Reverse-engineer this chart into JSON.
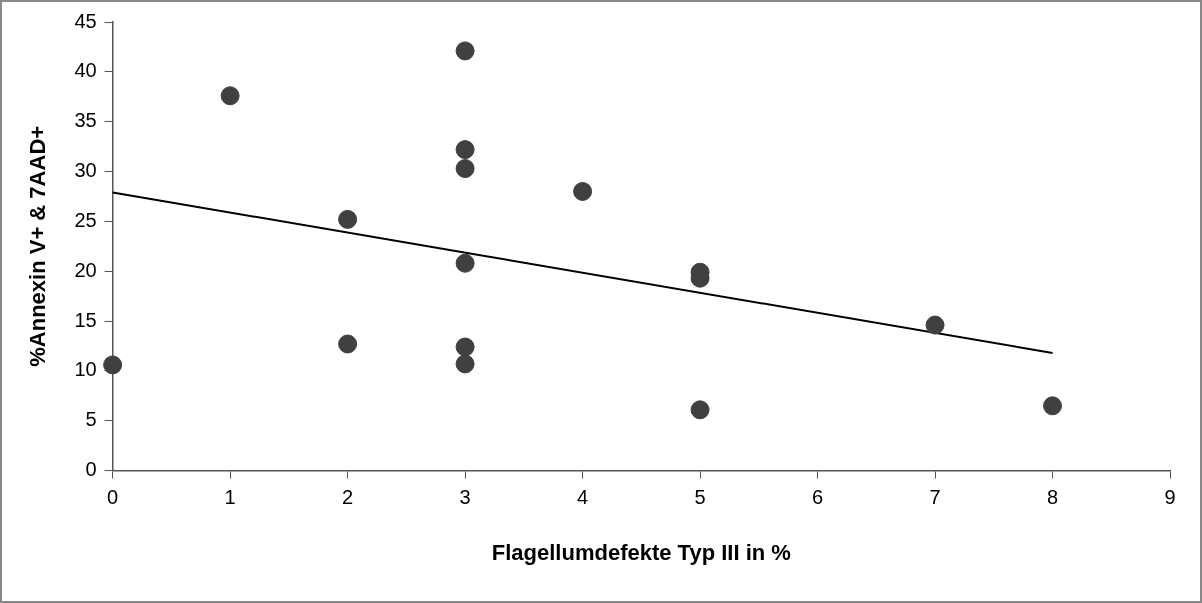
{
  "chart_data": {
    "type": "scatter",
    "xlabel": "Flagellumdefekte Typ III in %",
    "ylabel": "%Annexin V+ & 7AAD+",
    "xlim": [
      0,
      9
    ],
    "xticks": [
      0,
      1,
      2,
      3,
      4,
      5,
      6,
      7,
      8,
      9
    ],
    "ylim": [
      0,
      45
    ],
    "yticks": [
      0,
      5,
      10,
      15,
      20,
      25,
      30,
      35,
      40,
      45
    ],
    "grid": false,
    "legend": false,
    "marker": "circle",
    "series": [
      {
        "type": "scatter",
        "color": "#404040",
        "x": [
          0,
          1,
          2,
          2,
          3,
          3,
          3,
          3,
          3,
          3,
          4,
          5,
          5,
          5,
          7,
          8
        ],
        "values": [
          10.6,
          37.6,
          25.2,
          12.7,
          42.1,
          32.2,
          30.3,
          20.8,
          12.4,
          10.7,
          28.0,
          19.9,
          19.3,
          6.1,
          14.6,
          6.5
        ]
      },
      {
        "type": "line",
        "color": "#000000",
        "line_style": "solid",
        "marker": "none",
        "x": [
          0,
          8
        ],
        "values": [
          27.9,
          11.8
        ]
      }
    ]
  }
}
